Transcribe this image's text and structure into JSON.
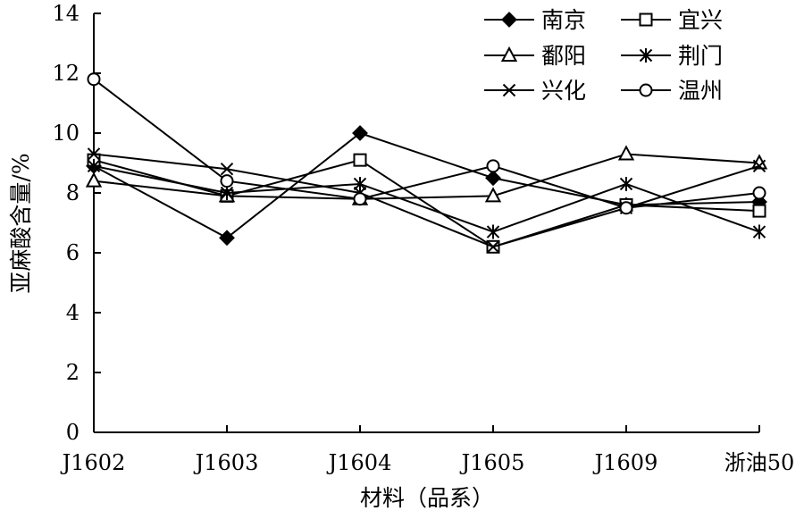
{
  "chart_data": {
    "type": "line",
    "title": "",
    "xlabel": "材料（品系）",
    "ylabel": "亚麻酸含量/%",
    "categories": [
      "J1602",
      "J1603",
      "J1604",
      "J1605",
      "J1609",
      "浙油50"
    ],
    "ylim": [
      0,
      14
    ],
    "yticks": [
      0,
      2,
      4,
      6,
      8,
      10,
      12,
      14
    ],
    "grid": false,
    "legend_position": "top-right",
    "series": [
      {
        "name": "南京",
        "marker": "filled-diamond",
        "values": [
          8.9,
          6.5,
          10.0,
          8.5,
          7.6,
          7.7
        ]
      },
      {
        "name": "宜兴",
        "marker": "open-square",
        "values": [
          9.1,
          7.9,
          9.1,
          6.2,
          7.6,
          7.4
        ]
      },
      {
        "name": "鄱阳",
        "marker": "open-triangle",
        "values": [
          8.4,
          7.9,
          7.8,
          7.9,
          9.3,
          9.0
        ]
      },
      {
        "name": "荆门",
        "marker": "asterisk",
        "values": [
          8.9,
          8.0,
          8.3,
          6.7,
          8.3,
          6.7
        ]
      },
      {
        "name": "兴化",
        "marker": "x",
        "values": [
          9.3,
          8.8,
          8.0,
          6.2,
          7.5,
          8.9
        ]
      },
      {
        "name": "温州",
        "marker": "open-circle",
        "values": [
          11.8,
          8.4,
          7.8,
          8.9,
          7.5,
          8.0
        ]
      }
    ]
  }
}
